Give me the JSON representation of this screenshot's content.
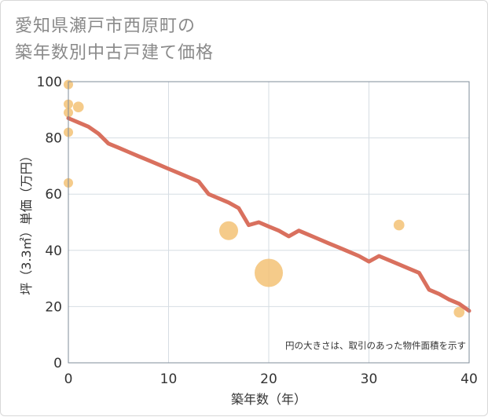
{
  "title": {
    "line1": "愛知県瀬戸市西原町の",
    "line2": "築年数別中古戸建て価格"
  },
  "colors": {
    "line": "#d9705e",
    "bubble": "#f3c275",
    "grid": "#d6dde3",
    "plot_border": "#7f8c99"
  },
  "chart_data": {
    "type": "scatter",
    "title": "愛知県瀬戸市西原町の築年数別中古戸建て価格",
    "xlabel": "築年数（年）",
    "ylabel": "坪（3.3㎡）単価（万円）",
    "xlim": [
      0,
      40
    ],
    "ylim": [
      0,
      100
    ],
    "x_ticks": [
      0,
      10,
      20,
      30,
      40
    ],
    "y_ticks": [
      0,
      20,
      40,
      60,
      80,
      100
    ],
    "note": "円の大きさは、取引のあった物件面積を示す",
    "bubbles": [
      {
        "x": 0,
        "y": 99,
        "size": 1
      },
      {
        "x": 0,
        "y": 92,
        "size": 1
      },
      {
        "x": 0,
        "y": 89,
        "size": 1
      },
      {
        "x": 1,
        "y": 91,
        "size": 1.3
      },
      {
        "x": 0,
        "y": 82,
        "size": 1
      },
      {
        "x": 0,
        "y": 64,
        "size": 1
      },
      {
        "x": 16,
        "y": 47,
        "size": 4
      },
      {
        "x": 20,
        "y": 32,
        "size": 9
      },
      {
        "x": 33,
        "y": 49,
        "size": 1.3
      },
      {
        "x": 39,
        "y": 18,
        "size": 1.3
      }
    ],
    "trend": {
      "x": [
        0,
        1,
        2,
        3,
        4,
        5,
        6,
        7,
        8,
        9,
        10,
        11,
        12,
        13,
        14,
        15,
        16,
        17,
        18,
        19,
        20,
        21,
        22,
        23,
        24,
        25,
        26,
        27,
        28,
        29,
        30,
        31,
        32,
        33,
        34,
        35,
        36,
        37,
        38,
        39,
        40
      ],
      "y": [
        87,
        85.5,
        84,
        81.5,
        78,
        76.5,
        75,
        73.5,
        72,
        70.5,
        69,
        67.5,
        66,
        64.5,
        60,
        58.5,
        57,
        55,
        49,
        50,
        48.5,
        47,
        45,
        47,
        45.5,
        44,
        42.5,
        41,
        39.5,
        38,
        36,
        38,
        36.5,
        35,
        33.5,
        32,
        26,
        24.5,
        22.5,
        21,
        18.5
      ]
    }
  }
}
